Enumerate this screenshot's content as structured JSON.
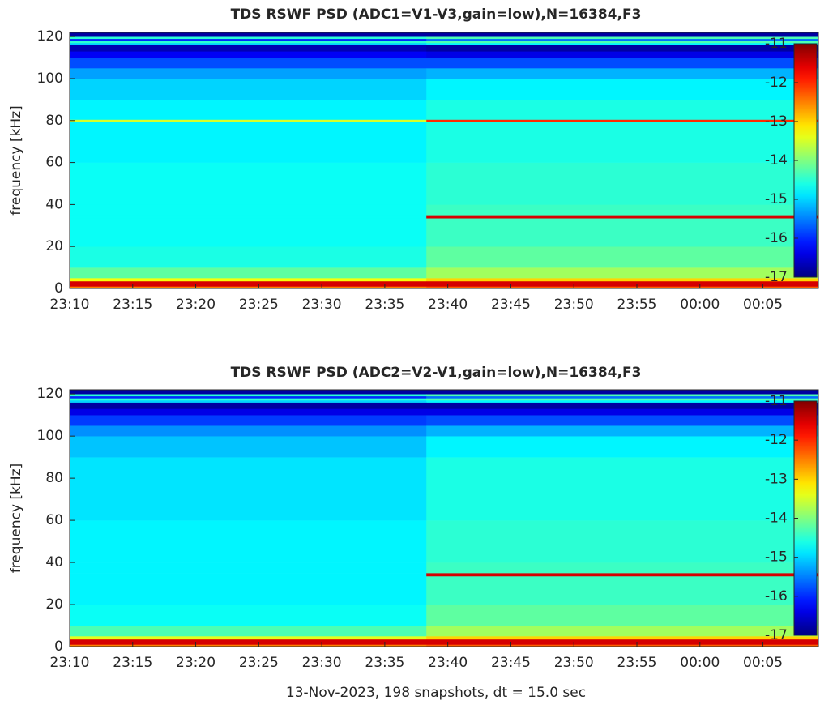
{
  "chart_data": [
    {
      "type": "spectrogram",
      "title": "TDS RSWF PSD (ADC1=V1-V3,gain=low),N=16384,F3",
      "ylabel": "frequency [kHz]",
      "colormap": "jet",
      "xlim": [
        0,
        59.4
      ],
      "xticks": [
        {
          "value": 0,
          "label": "23:10"
        },
        {
          "value": 5,
          "label": "23:15"
        },
        {
          "value": 10,
          "label": "23:20"
        },
        {
          "value": 15,
          "label": "23:25"
        },
        {
          "value": 20,
          "label": "23:30"
        },
        {
          "value": 25,
          "label": "23:35"
        },
        {
          "value": 30,
          "label": "23:40"
        },
        {
          "value": 35,
          "label": "23:45"
        },
        {
          "value": 40,
          "label": "23:50"
        },
        {
          "value": 45,
          "label": "23:55"
        },
        {
          "value": 50,
          "label": "00:00"
        },
        {
          "value": 55,
          "label": "00:05"
        }
      ],
      "ylim": [
        0,
        122
      ],
      "yticks": [
        0,
        20,
        40,
        60,
        80,
        100,
        120
      ],
      "clim": [
        -17,
        -11
      ],
      "cticks": [
        -17,
        -16,
        -15,
        -14,
        -13,
        -12,
        -11
      ],
      "time_edges": [
        0,
        28.3,
        59.4
      ],
      "freq_edges": [
        0,
        1,
        3.5,
        5,
        10,
        20,
        33.5,
        35,
        40,
        60,
        79.5,
        80.5,
        90,
        100,
        105,
        110,
        113,
        116,
        117,
        118,
        119,
        120,
        122
      ],
      "z": [
        [
          -12.5,
          -11.5,
          -13.3,
          -14.2,
          -14.6,
          -14.7,
          -14.7,
          -14.7,
          -14.7,
          -14.8,
          -13.5,
          -14.8,
          -15.0,
          -15.3,
          -15.8,
          -16.3,
          -16.7,
          -15.0,
          -14.5,
          -16.0,
          -14.5,
          -16.8
        ],
        [
          -12.3,
          -11.5,
          -13.0,
          -13.8,
          -14.2,
          -14.4,
          -11.5,
          -14.4,
          -14.5,
          -14.6,
          -12.0,
          -14.6,
          -14.8,
          -15.2,
          -15.8,
          -16.4,
          -16.8,
          -14.8,
          -14.3,
          -15.6,
          -14.3,
          -16.8
        ]
      ]
    },
    {
      "type": "spectrogram",
      "title": "TDS RSWF PSD (ADC2=V2-V1,gain=low),N=16384,F3",
      "ylabel": "frequency [kHz]",
      "xlabel": "13-Nov-2023, 198 snapshots, dt = 15.0 sec",
      "colormap": "jet",
      "xlim": [
        0,
        59.4
      ],
      "xticks": [
        {
          "value": 0,
          "label": "23:10"
        },
        {
          "value": 5,
          "label": "23:15"
        },
        {
          "value": 10,
          "label": "23:20"
        },
        {
          "value": 15,
          "label": "23:25"
        },
        {
          "value": 20,
          "label": "23:30"
        },
        {
          "value": 25,
          "label": "23:35"
        },
        {
          "value": 30,
          "label": "23:40"
        },
        {
          "value": 35,
          "label": "23:45"
        },
        {
          "value": 40,
          "label": "23:50"
        },
        {
          "value": 45,
          "label": "23:55"
        },
        {
          "value": 50,
          "label": "00:00"
        },
        {
          "value": 55,
          "label": "00:05"
        }
      ],
      "ylim": [
        0,
        122
      ],
      "yticks": [
        0,
        20,
        40,
        60,
        80,
        100,
        120
      ],
      "clim": [
        -17,
        -11
      ],
      "cticks": [
        -17,
        -16,
        -15,
        -14,
        -13,
        -12,
        -11
      ],
      "time_edges": [
        0,
        28.3,
        59.4
      ],
      "freq_edges": [
        0,
        1,
        3.5,
        5,
        10,
        20,
        33.5,
        35,
        40,
        60,
        79.5,
        80.5,
        90,
        100,
        105,
        110,
        113,
        116,
        117,
        118,
        119,
        120,
        122
      ],
      "z": [
        [
          -12.5,
          -11.5,
          -13.4,
          -14.3,
          -14.7,
          -14.8,
          -14.8,
          -14.8,
          -14.8,
          -14.9,
          -14.9,
          -14.9,
          -15.1,
          -15.4,
          -15.9,
          -16.4,
          -16.8,
          -15.0,
          -14.5,
          -16.0,
          -14.5,
          -16.8
        ],
        [
          -12.3,
          -11.5,
          -13.0,
          -13.8,
          -14.2,
          -14.4,
          -11.5,
          -14.4,
          -14.5,
          -14.6,
          -14.6,
          -14.6,
          -14.8,
          -15.2,
          -15.8,
          -16.4,
          -16.8,
          -14.8,
          -14.3,
          -15.6,
          -14.3,
          -16.8
        ]
      ]
    }
  ]
}
